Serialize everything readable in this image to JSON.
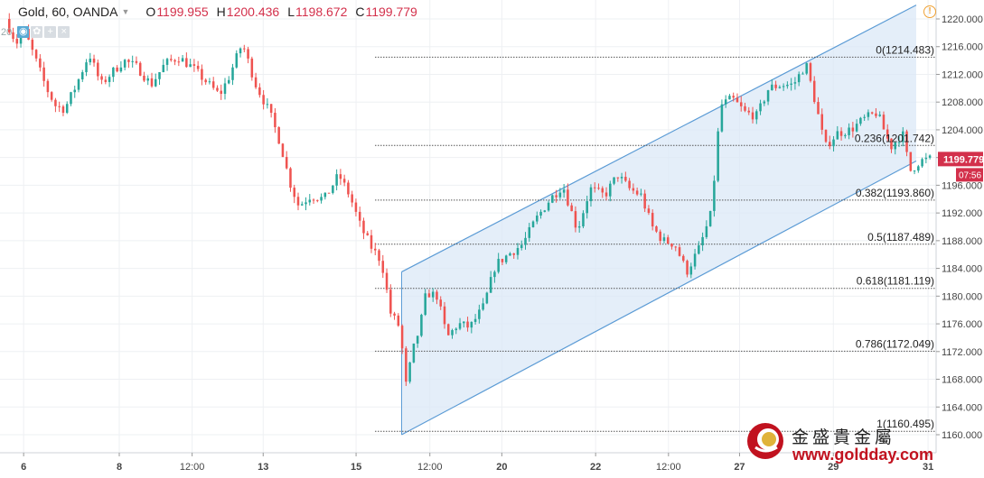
{
  "header": {
    "symbol": "Gold, 60, OANDA",
    "open_label": "O",
    "open": "1199.955",
    "high_label": "H",
    "high": "1200.436",
    "low_label": "L",
    "low": "1198.672",
    "close_label": "C",
    "close": "1199.779"
  },
  "indicator_row": {
    "volume_label": "20",
    "buttons": [
      "eye-button",
      "settings-button",
      "add-button",
      "close-button"
    ]
  },
  "colors": {
    "up": "#26a69a",
    "down": "#ef5350",
    "channel": "#5b9bd5",
    "fib_line": "#555555",
    "price_tag": "#d3304b"
  },
  "chart_data": {
    "type": "candlestick",
    "title": "Gold, 60, OANDA",
    "xlabel": "",
    "ylabel": "",
    "ylim": [
      1158.5,
      1222
    ],
    "y_ticks": [
      "1220.000",
      "1216.000",
      "1212.000",
      "1208.000",
      "1204.000",
      "1200.000",
      "1196.000",
      "1192.000",
      "1188.000",
      "1184.000",
      "1180.000",
      "1176.000",
      "1172.000",
      "1168.000",
      "1164.000",
      "1160.000"
    ],
    "x_ticks": [
      {
        "label": "6",
        "pos": 0.02
      },
      {
        "label": "8",
        "pos": 0.125
      },
      {
        "label": "12:00",
        "pos": 0.205
      },
      {
        "label": "13",
        "pos": 0.283
      },
      {
        "label": "15",
        "pos": 0.385
      },
      {
        "label": "12:00",
        "pos": 0.466
      },
      {
        "label": "20",
        "pos": 0.545
      },
      {
        "label": "22",
        "pos": 0.648
      },
      {
        "label": "12:00",
        "pos": 0.728
      },
      {
        "label": "27",
        "pos": 0.806
      },
      {
        "label": "29",
        "pos": 0.909
      },
      {
        "label": "31",
        "pos": 1.013
      }
    ],
    "price_path": [
      [
        0.0,
        1220.0
      ],
      [
        0.012,
        1216.5
      ],
      [
        0.02,
        1218.5
      ],
      [
        0.032,
        1214.5
      ],
      [
        0.045,
        1210.0
      ],
      [
        0.055,
        1207.5
      ],
      [
        0.065,
        1207.0
      ],
      [
        0.078,
        1210.5
      ],
      [
        0.092,
        1215.0
      ],
      [
        0.105,
        1210.5
      ],
      [
        0.115,
        1212.0
      ],
      [
        0.13,
        1214.0
      ],
      [
        0.145,
        1213.0
      ],
      [
        0.16,
        1210.5
      ],
      [
        0.175,
        1213.5
      ],
      [
        0.19,
        1214.5
      ],
      [
        0.205,
        1213.0
      ],
      [
        0.22,
        1211.0
      ],
      [
        0.235,
        1209.0
      ],
      [
        0.245,
        1211.5
      ],
      [
        0.26,
        1216.5
      ],
      [
        0.275,
        1210.5
      ],
      [
        0.29,
        1206.5
      ],
      [
        0.302,
        1202.0
      ],
      [
        0.312,
        1196.5
      ],
      [
        0.322,
        1193.0
      ],
      [
        0.335,
        1194.5
      ],
      [
        0.35,
        1194.0
      ],
      [
        0.366,
        1197.5
      ],
      [
        0.378,
        1194.5
      ],
      [
        0.39,
        1190.0
      ],
      [
        0.402,
        1187.0
      ],
      [
        0.413,
        1185.0
      ],
      [
        0.423,
        1177.5
      ],
      [
        0.433,
        1175.5
      ],
      [
        0.44,
        1167.0
      ],
      [
        0.447,
        1172.0
      ],
      [
        0.455,
        1175.5
      ],
      [
        0.462,
        1180.5
      ],
      [
        0.474,
        1180.0
      ],
      [
        0.485,
        1174.0
      ],
      [
        0.497,
        1176.0
      ],
      [
        0.51,
        1175.5
      ],
      [
        0.525,
        1178.5
      ],
      [
        0.538,
        1184.5
      ],
      [
        0.552,
        1186.0
      ],
      [
        0.568,
        1187.5
      ],
      [
        0.582,
        1191.0
      ],
      [
        0.598,
        1194.0
      ],
      [
        0.612,
        1196.0
      ],
      [
        0.628,
        1189.5
      ],
      [
        0.642,
        1195.5
      ],
      [
        0.658,
        1194.5
      ],
      [
        0.672,
        1197.5
      ],
      [
        0.685,
        1195.5
      ],
      [
        0.698,
        1194.5
      ],
      [
        0.71,
        1190.0
      ],
      [
        0.722,
        1188.0
      ],
      [
        0.735,
        1187.5
      ],
      [
        0.748,
        1183.5
      ],
      [
        0.762,
        1187.0
      ],
      [
        0.775,
        1192.0
      ],
      [
        0.785,
        1207.5
      ],
      [
        0.798,
        1208.5
      ],
      [
        0.812,
        1206.5
      ],
      [
        0.825,
        1206.0
      ],
      [
        0.838,
        1210.0
      ],
      [
        0.852,
        1210.5
      ],
      [
        0.865,
        1210.5
      ],
      [
        0.879,
        1213.5
      ],
      [
        0.89,
        1207.5
      ],
      [
        0.9,
        1201.5
      ],
      [
        0.913,
        1203.5
      ],
      [
        0.928,
        1204.0
      ],
      [
        0.942,
        1205.5
      ],
      [
        0.957,
        1206.5
      ],
      [
        0.972,
        1201.5
      ],
      [
        0.985,
        1203.5
      ],
      [
        0.993,
        1198.0
      ],
      [
        1.004,
        1199.5
      ],
      [
        1.015,
        1199.779
      ]
    ],
    "channel": {
      "upper": {
        "from": [
          0.435,
          1183.5
        ],
        "to": [
          1.0,
          1222.0
        ]
      },
      "lower": {
        "from": [
          0.435,
          1160.0
        ],
        "to": [
          1.0,
          1199.5
        ]
      }
    },
    "fibonacci": [
      {
        "label": "0(1214.483)",
        "value": 1214.483
      },
      {
        "label": "0.236(1201.742)",
        "value": 1201.742
      },
      {
        "label": "0.382(1193.860)",
        "value": 1193.86
      },
      {
        "label": "0.5(1187.489)",
        "value": 1187.489
      },
      {
        "label": "0.618(1181.119)",
        "value": 1181.119
      },
      {
        "label": "0.786(1172.049)",
        "value": 1172.049
      },
      {
        "label": "1(1160.495)",
        "value": 1160.495
      }
    ],
    "last_price": {
      "value": "1199.779",
      "countdown": "07:56"
    }
  },
  "watermark": {
    "cn": "金盛貴金屬",
    "url": "www.goldday.com"
  }
}
